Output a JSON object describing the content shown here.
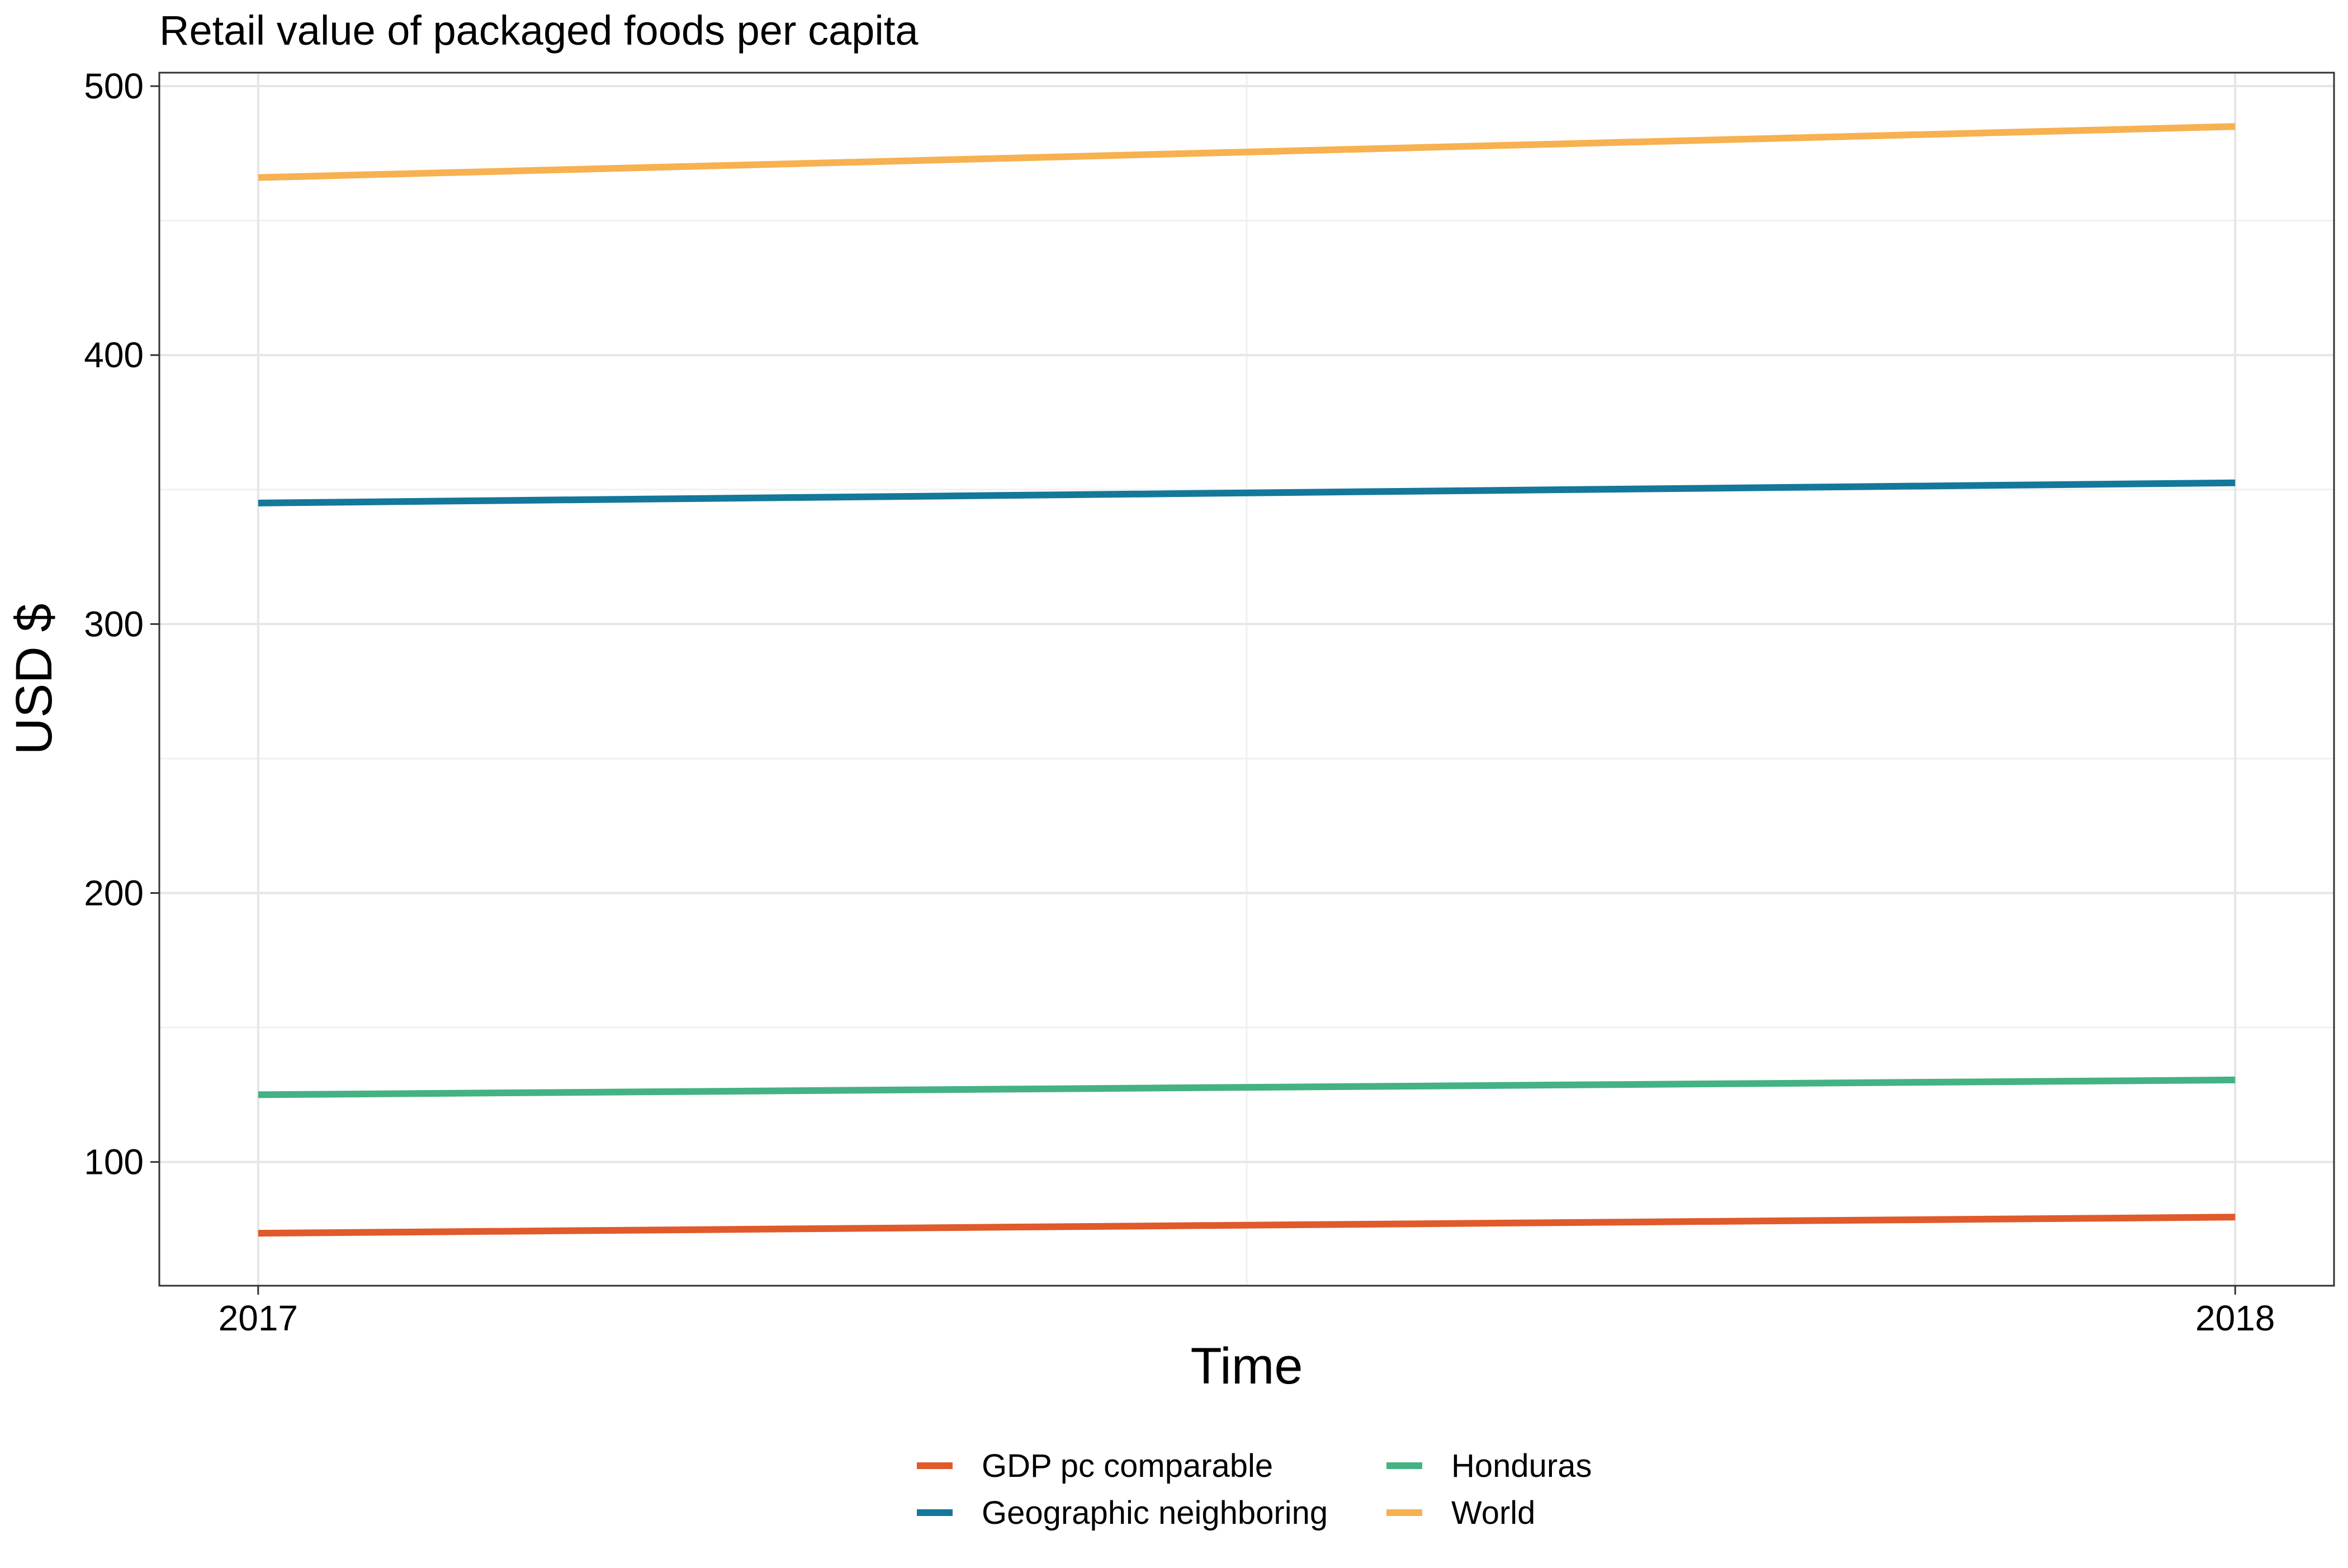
{
  "chart_data": {
    "type": "line",
    "title": "Retail value of packaged foods per capita",
    "xlabel": "Time",
    "ylabel": "USD $",
    "x": [
      "2017",
      "2018"
    ],
    "xlim": [
      2016.95,
      2018.05
    ],
    "ylim": [
      54,
      505
    ],
    "y_ticks": [
      100,
      200,
      300,
      400,
      500
    ],
    "grid": true,
    "legend_position": "bottom",
    "series": [
      {
        "name": "GDP pc comparable",
        "color": "#e05a2b",
        "values": [
          73.5,
          79.5
        ]
      },
      {
        "name": "Geographic neighboring",
        "color": "#14789a",
        "values": [
          345,
          352.5
        ]
      },
      {
        "name": "Honduras",
        "color": "#44b283",
        "values": [
          125,
          130.5
        ]
      },
      {
        "name": "World",
        "color": "#f7b150",
        "values": [
          466,
          485
        ]
      }
    ]
  }
}
